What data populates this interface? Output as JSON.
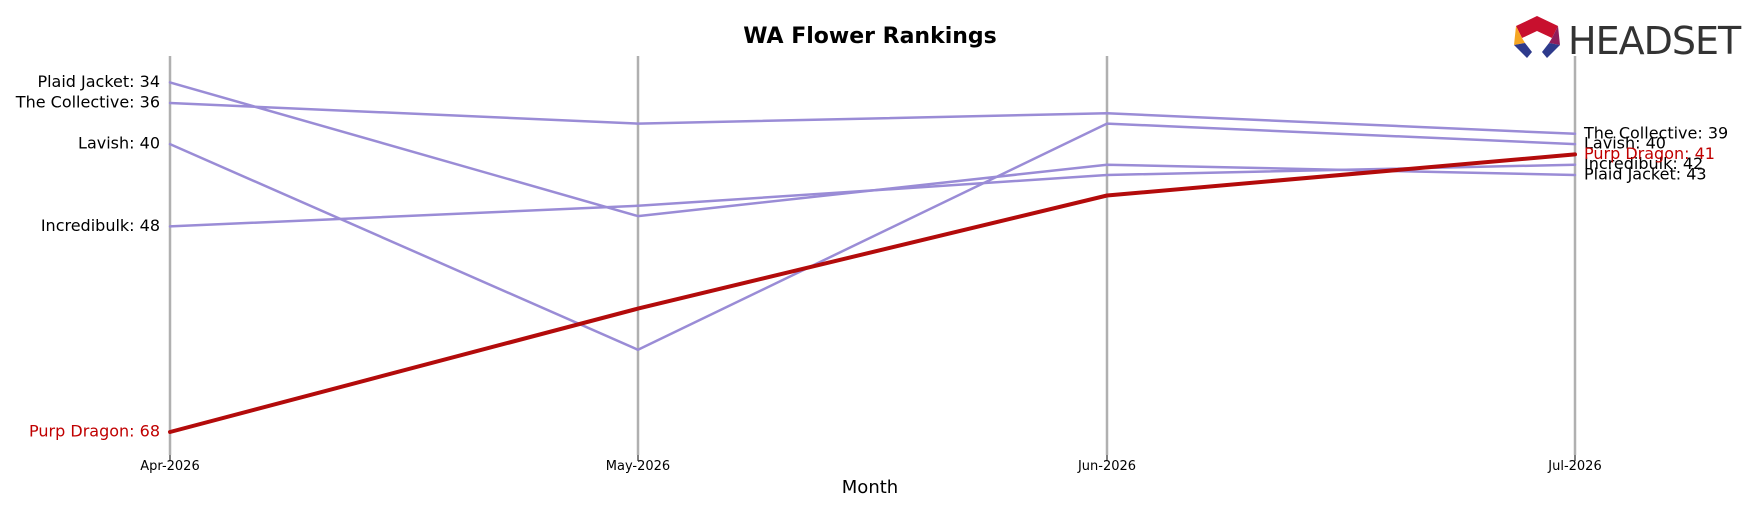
{
  "chart_data": {
    "type": "line",
    "title": "WA Flower Rankings",
    "xlabel": "Month",
    "ylabel": "",
    "x": [
      "Apr-2026",
      "May-2026",
      "Jun-2026",
      "Jul-2026"
    ],
    "y_inverted": true,
    "ylim": [
      31,
      68
    ],
    "grid": false,
    "series": [
      {
        "name": "Plaid Jacket",
        "values": [
          34,
          47,
          42,
          43
        ],
        "color": "#9a8cd6",
        "highlight": false,
        "start_label": "Plaid Jacket: 34",
        "end_label": "Plaid Jacket: 43"
      },
      {
        "name": "The Collective",
        "values": [
          36,
          38,
          37,
          39
        ],
        "color": "#9a8cd6",
        "highlight": false,
        "start_label": "The Collective: 36",
        "end_label": "The Collective: 39"
      },
      {
        "name": "Lavish",
        "values": [
          40,
          60,
          38,
          40
        ],
        "color": "#9a8cd6",
        "highlight": false,
        "start_label": "Lavish: 40",
        "end_label": "Lavish: 40"
      },
      {
        "name": "Incredibulk",
        "values": [
          48,
          46,
          43,
          42
        ],
        "color": "#9a8cd6",
        "highlight": false,
        "start_label": "Incredibulk: 48",
        "end_label": "Incredibulk: 42"
      },
      {
        "name": "Purp Dragon",
        "values": [
          68,
          56,
          45,
          41
        ],
        "color": "#b30b0b",
        "highlight": true,
        "start_label": "Purp Dragon: 68",
        "end_label": "Purp Dragon: 41"
      }
    ]
  },
  "logo": {
    "text": "HEADSET",
    "colors": [
      "#c8102e",
      "#8e1e5c",
      "#f5a623",
      "#2e3a8c"
    ]
  }
}
